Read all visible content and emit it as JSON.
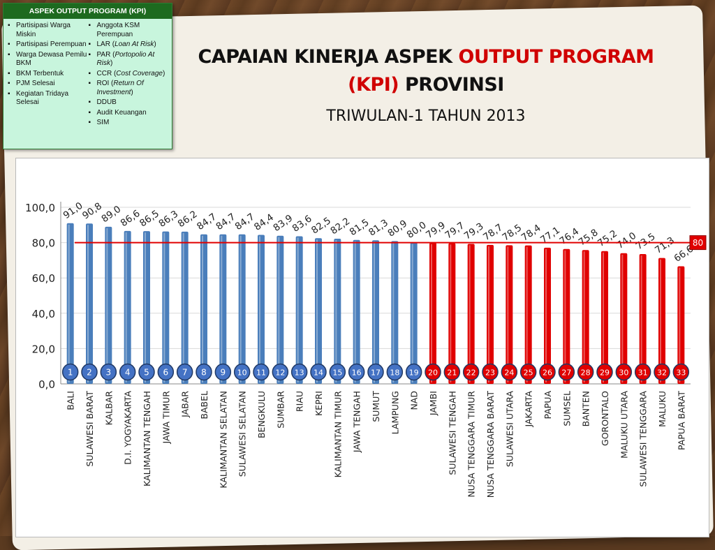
{
  "title": {
    "part1": "CAPAIAN KINERJA ASPEK ",
    "part2": "OUTPUT PROGRAM (KPI)",
    "part3": " PROVINSI",
    "subtitle": "TRIWULAN-1 TAHUN 2013"
  },
  "kpi_box": {
    "header": "ASPEK OUTPUT PROGRAM (KPI)",
    "left": [
      "Partisipasi Warga Miskin",
      "Partisipasi Perempuan",
      "Warga Dewasa Pemilu BKM",
      "BKM Terbentuk",
      "PJM Selesai",
      "Kegiatan Tridaya Selesai"
    ],
    "right": [
      {
        "pre": "Anggota KSM Perempuan",
        "italic": "",
        "post": ""
      },
      {
        "pre": "LAR (",
        "italic": "Loan At Risk",
        "post": ")"
      },
      {
        "pre": "PAR (",
        "italic": "Portopolio At Risk",
        "post": ")"
      },
      {
        "pre": "CCR (",
        "italic": "Cost Coverage",
        "post": ")"
      },
      {
        "pre": "ROI (",
        "italic": "Return Of Investment",
        "post": ")"
      },
      {
        "pre": "DDUB",
        "italic": "",
        "post": ""
      },
      {
        "pre": "Audit Keuangan",
        "italic": "",
        "post": ""
      },
      {
        "pre": "SIM",
        "italic": "",
        "post": ""
      }
    ]
  },
  "colors": {
    "above": "#4a7ebb",
    "below": "#e00000",
    "target_line": "#e00000",
    "above_badge": "#4472c4",
    "below_badge": "#e00000",
    "badge_border": "#1f3864"
  },
  "chart_data": {
    "type": "bar",
    "categories": [
      "BALI",
      "SULAWESI BARAT",
      "KALBAR",
      "D.I. YOGYAKARTA",
      "KALIMANTAN TENGAH",
      "JAWA TIMUR",
      "JABAR",
      "BABEL",
      "KALIMANTAN SELATAN",
      "SULAWESI SELATAN",
      "BENGKULU",
      "SUMBAR",
      "RIAU",
      "KEPRI",
      "KALIMANTAN TIMUR",
      "JAWA TENGAH",
      "SUMUT",
      "LAMPUNG",
      "NAD",
      "JAMBI",
      "SULAWESI TENGAH",
      "NUSA TENGGARA TIMUR",
      "NUSA TENGGARA BARAT",
      "SULAWESI UTARA",
      "JAKARTA",
      "PAPUA",
      "SUMSEL",
      "BANTEN",
      "GORONTALO",
      "MALUKU UTARA",
      "SULAWESI TENGGARA",
      "MALUKU",
      "PAPUA BARAT"
    ],
    "values": [
      91.0,
      90.8,
      89.0,
      86.6,
      86.5,
      86.3,
      86.2,
      84.7,
      84.7,
      84.7,
      84.4,
      83.9,
      83.6,
      82.5,
      82.2,
      81.5,
      81.3,
      80.9,
      80.0,
      79.9,
      79.7,
      79.3,
      78.7,
      78.5,
      78.4,
      77.1,
      76.4,
      75.8,
      75.2,
      74.0,
      73.5,
      71.3,
      66.6
    ],
    "value_labels": [
      "91,0",
      "90,8",
      "89,0",
      "86,6",
      "86,5",
      "86,3",
      "86,2",
      "84,7",
      "84,7",
      "84,7",
      "84,4",
      "83,9",
      "83,6",
      "82,5",
      "82,2",
      "81,5",
      "81,3",
      "80,9",
      "80,0",
      "79,9",
      "79,7",
      "79,3",
      "78,7",
      "78,5",
      "78,4",
      "77,1",
      "76,4",
      "75,8",
      "75,2",
      "74,0",
      "73,5",
      "71,3",
      "66,6"
    ],
    "ranks": [
      "1",
      "2",
      "3",
      "4",
      "5",
      "6",
      "7",
      "8",
      "9",
      "10",
      "11",
      "12",
      "13",
      "14",
      "15",
      "16",
      "17",
      "18",
      "19",
      "20",
      "21",
      "22",
      "23",
      "24",
      "25",
      "26",
      "27",
      "28",
      "29",
      "30",
      "31",
      "32",
      "33"
    ],
    "above_count": 19,
    "target": 80,
    "target_label": "80",
    "ylim": [
      0,
      100
    ],
    "yticks": [
      0,
      20,
      40,
      60,
      80,
      100
    ],
    "ytick_labels": [
      "0,0",
      "20,0",
      "40,0",
      "60,0",
      "80,0",
      "100,0"
    ],
    "grid": true,
    "legend": "none"
  }
}
